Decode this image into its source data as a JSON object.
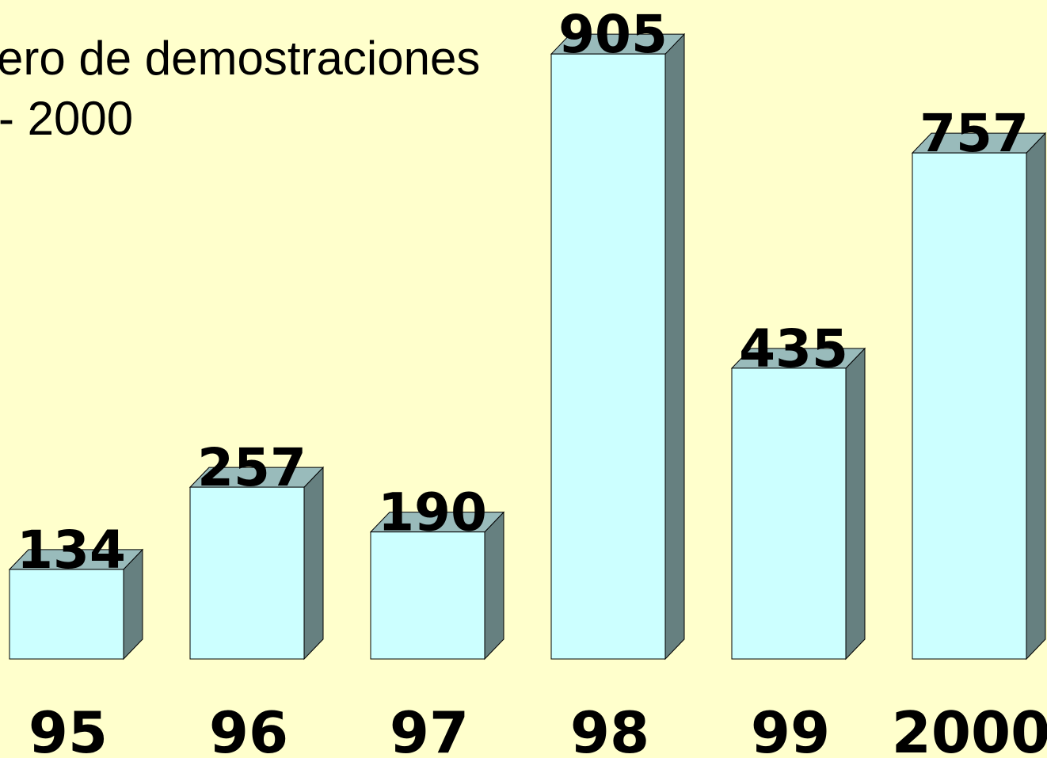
{
  "chart_data": {
    "type": "bar3d",
    "title": "ero de demostraciones",
    "subtitle": "- 2000",
    "categories": [
      "95",
      "96",
      "97",
      "98",
      "99",
      "2000"
    ],
    "values": [
      134,
      257,
      190,
      905,
      435,
      757
    ],
    "color": "#ccffff"
  }
}
